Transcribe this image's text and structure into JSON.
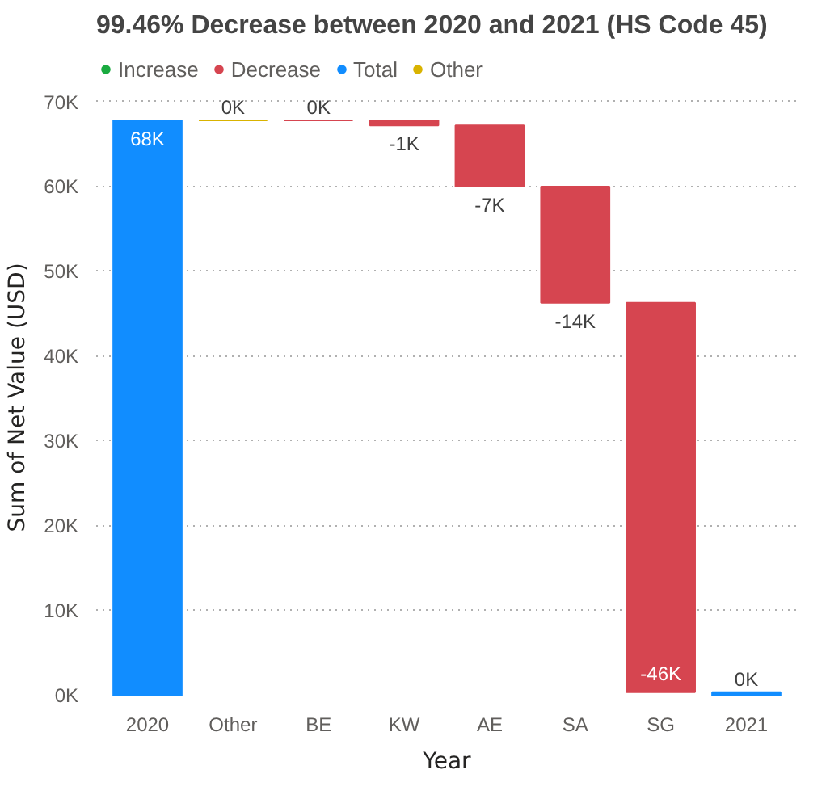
{
  "chart_data": {
    "type": "bar",
    "title": "99.46% Decrease between 2020 and 2021 (HS Code 45)",
    "xlabel": "Year",
    "ylabel": "Sum of Net Value (USD)",
    "categories": [
      "2020",
      "Other",
      "BE",
      "KW",
      "AE",
      "SA",
      "SG",
      "2021"
    ],
    "series": [
      {
        "name": "Increase",
        "color": "#1aab40",
        "values": [
          null,
          null,
          null,
          null,
          null,
          null,
          null,
          null
        ],
        "base": [
          null,
          null,
          null,
          null,
          null,
          null,
          null,
          null
        ]
      },
      {
        "name": "Decrease",
        "color": "#d64550",
        "values": [
          null,
          null,
          0,
          -600,
          -7200,
          -13700,
          -45900,
          null
        ],
        "base": [
          null,
          null,
          67800,
          67800,
          67200,
          60000,
          46300,
          null
        ]
      },
      {
        "name": "Total",
        "color": "#118dff",
        "values": [
          67800,
          null,
          null,
          null,
          null,
          null,
          null,
          400
        ],
        "base": [
          0,
          null,
          null,
          null,
          null,
          null,
          null,
          0
        ]
      },
      {
        "name": "Other",
        "color": "#d9b300",
        "values": [
          null,
          0,
          null,
          null,
          null,
          null,
          null,
          null
        ],
        "base": [
          null,
          67800,
          null,
          null,
          null,
          null,
          null,
          null
        ]
      }
    ],
    "value_labels": [
      "68K",
      "0K",
      "0K",
      "-1K",
      "-7K",
      "-14K",
      "-46K",
      "0K"
    ],
    "ylim": [
      0,
      70000
    ],
    "yticks": [
      {
        "value": 0,
        "label": "0K"
      },
      {
        "value": 10000,
        "label": "10K"
      },
      {
        "value": 20000,
        "label": "20K"
      },
      {
        "value": 30000,
        "label": "30K"
      },
      {
        "value": 40000,
        "label": "40K"
      },
      {
        "value": 50000,
        "label": "50K"
      },
      {
        "value": 60000,
        "label": "60K"
      },
      {
        "value": 70000,
        "label": "70K"
      }
    ],
    "grid": "y",
    "legend": "top left"
  }
}
